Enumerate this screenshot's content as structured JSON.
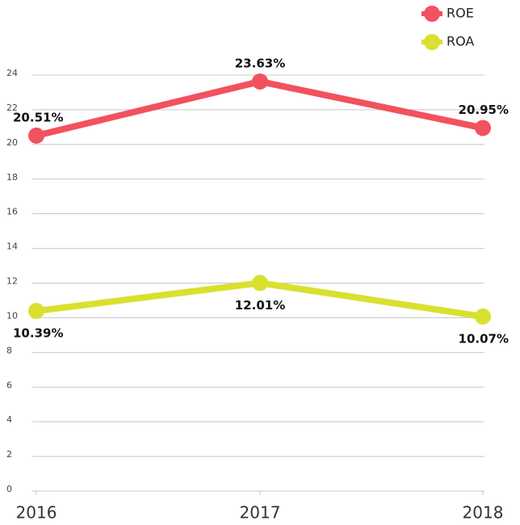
{
  "chart_data": {
    "type": "line",
    "categories": [
      "2016",
      "2017",
      "2018"
    ],
    "series": [
      {
        "name": "ROE",
        "color": "#f2515e",
        "values": [
          20.51,
          23.63,
          20.95
        ],
        "value_labels": [
          "20.51%",
          "23.63%",
          "20.95%"
        ]
      },
      {
        "name": "ROA",
        "color": "#d9e02f",
        "values": [
          10.39,
          12.01,
          10.07
        ],
        "value_labels": [
          "10.39%",
          "12.01%",
          "10.07%"
        ]
      }
    ],
    "ylim": [
      0,
      24
    ],
    "yticks": [
      0,
      2,
      4,
      6,
      8,
      10,
      12,
      14,
      16,
      18,
      20,
      22,
      24
    ],
    "grid": true
  }
}
